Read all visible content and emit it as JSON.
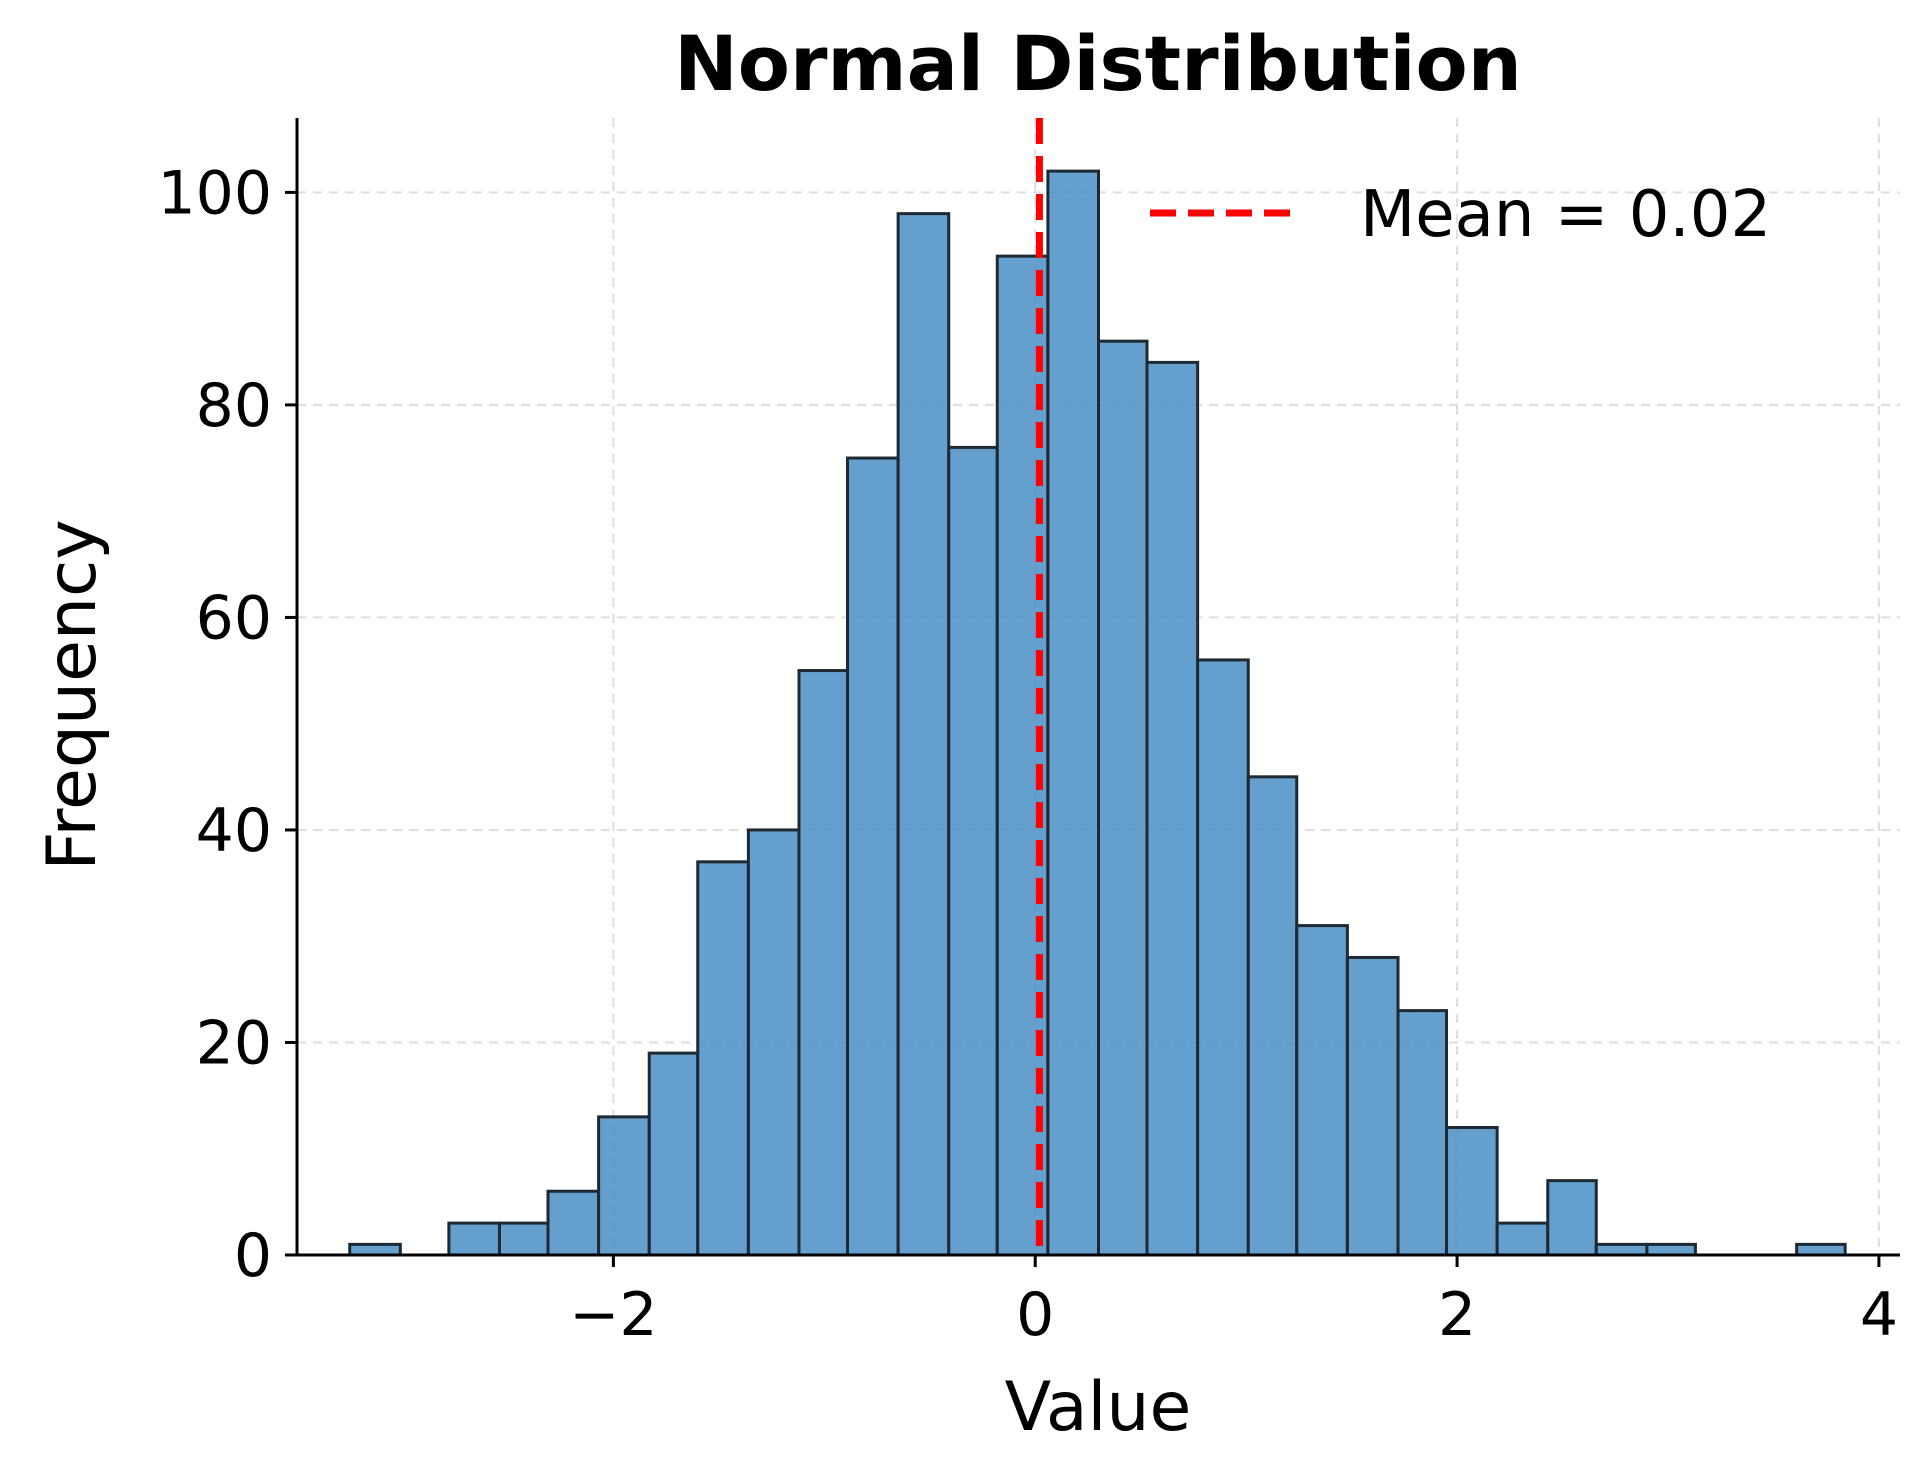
{
  "chart_data": {
    "type": "bar",
    "title": "Normal Distribution",
    "xlabel": "Value",
    "ylabel": "Frequency",
    "xlim": [
      -3.5,
      4.1
    ],
    "ylim": [
      0,
      107
    ],
    "xticks": [
      -2,
      0,
      2,
      4
    ],
    "xtick_labels": [
      "−2",
      "0",
      "2",
      "4"
    ],
    "yticks": [
      0,
      20,
      40,
      60,
      80,
      100
    ],
    "ytick_labels": [
      "0",
      "20",
      "40",
      "60",
      "80",
      "100"
    ],
    "grid": true,
    "legend_position": "top-right",
    "bins": [
      {
        "x0": -3.25,
        "x1": -3.01,
        "count": 1
      },
      {
        "x0": -3.01,
        "x1": -2.78,
        "count": 0
      },
      {
        "x0": -2.78,
        "x1": -2.54,
        "count": 3
      },
      {
        "x0": -2.54,
        "x1": -2.31,
        "count": 3
      },
      {
        "x0": -2.31,
        "x1": -2.07,
        "count": 6
      },
      {
        "x0": -2.07,
        "x1": -1.83,
        "count": 13
      },
      {
        "x0": -1.83,
        "x1": -1.6,
        "count": 19
      },
      {
        "x0": -1.6,
        "x1": -1.36,
        "count": 37
      },
      {
        "x0": -1.36,
        "x1": -1.12,
        "count": 40
      },
      {
        "x0": -1.12,
        "x1": -0.89,
        "count": 55
      },
      {
        "x0": -0.89,
        "x1": -0.65,
        "count": 75
      },
      {
        "x0": -0.65,
        "x1": -0.41,
        "count": 98
      },
      {
        "x0": -0.41,
        "x1": -0.18,
        "count": 76
      },
      {
        "x0": -0.18,
        "x1": 0.06,
        "count": 94
      },
      {
        "x0": 0.06,
        "x1": 0.3,
        "count": 102
      },
      {
        "x0": 0.3,
        "x1": 0.53,
        "count": 86
      },
      {
        "x0": 0.53,
        "x1": 0.77,
        "count": 84
      },
      {
        "x0": 0.77,
        "x1": 1.01,
        "count": 56
      },
      {
        "x0": 1.01,
        "x1": 1.24,
        "count": 45
      },
      {
        "x0": 1.24,
        "x1": 1.48,
        "count": 31
      },
      {
        "x0": 1.48,
        "x1": 1.72,
        "count": 28
      },
      {
        "x0": 1.72,
        "x1": 1.95,
        "count": 23
      },
      {
        "x0": 1.95,
        "x1": 2.19,
        "count": 12
      },
      {
        "x0": 2.19,
        "x1": 2.43,
        "count": 3
      },
      {
        "x0": 2.43,
        "x1": 2.66,
        "count": 7
      },
      {
        "x0": 2.66,
        "x1": 2.9,
        "count": 1
      },
      {
        "x0": 2.9,
        "x1": 3.13,
        "count": 1
      },
      {
        "x0": 3.13,
        "x1": 3.37,
        "count": 0
      },
      {
        "x0": 3.37,
        "x1": 3.61,
        "count": 0
      },
      {
        "x0": 3.61,
        "x1": 3.84,
        "count": 1
      }
    ],
    "mean": 0.02,
    "legend": [
      {
        "label": "Mean = 0.02",
        "style": "dashed",
        "color": "#ff0000"
      }
    ],
    "colors": {
      "bar_fill": "#4a8ec4",
      "bar_edge": "#1e2a33",
      "mean_line": "#ff0000",
      "grid": "#dddddd",
      "axis": "#000000"
    }
  }
}
